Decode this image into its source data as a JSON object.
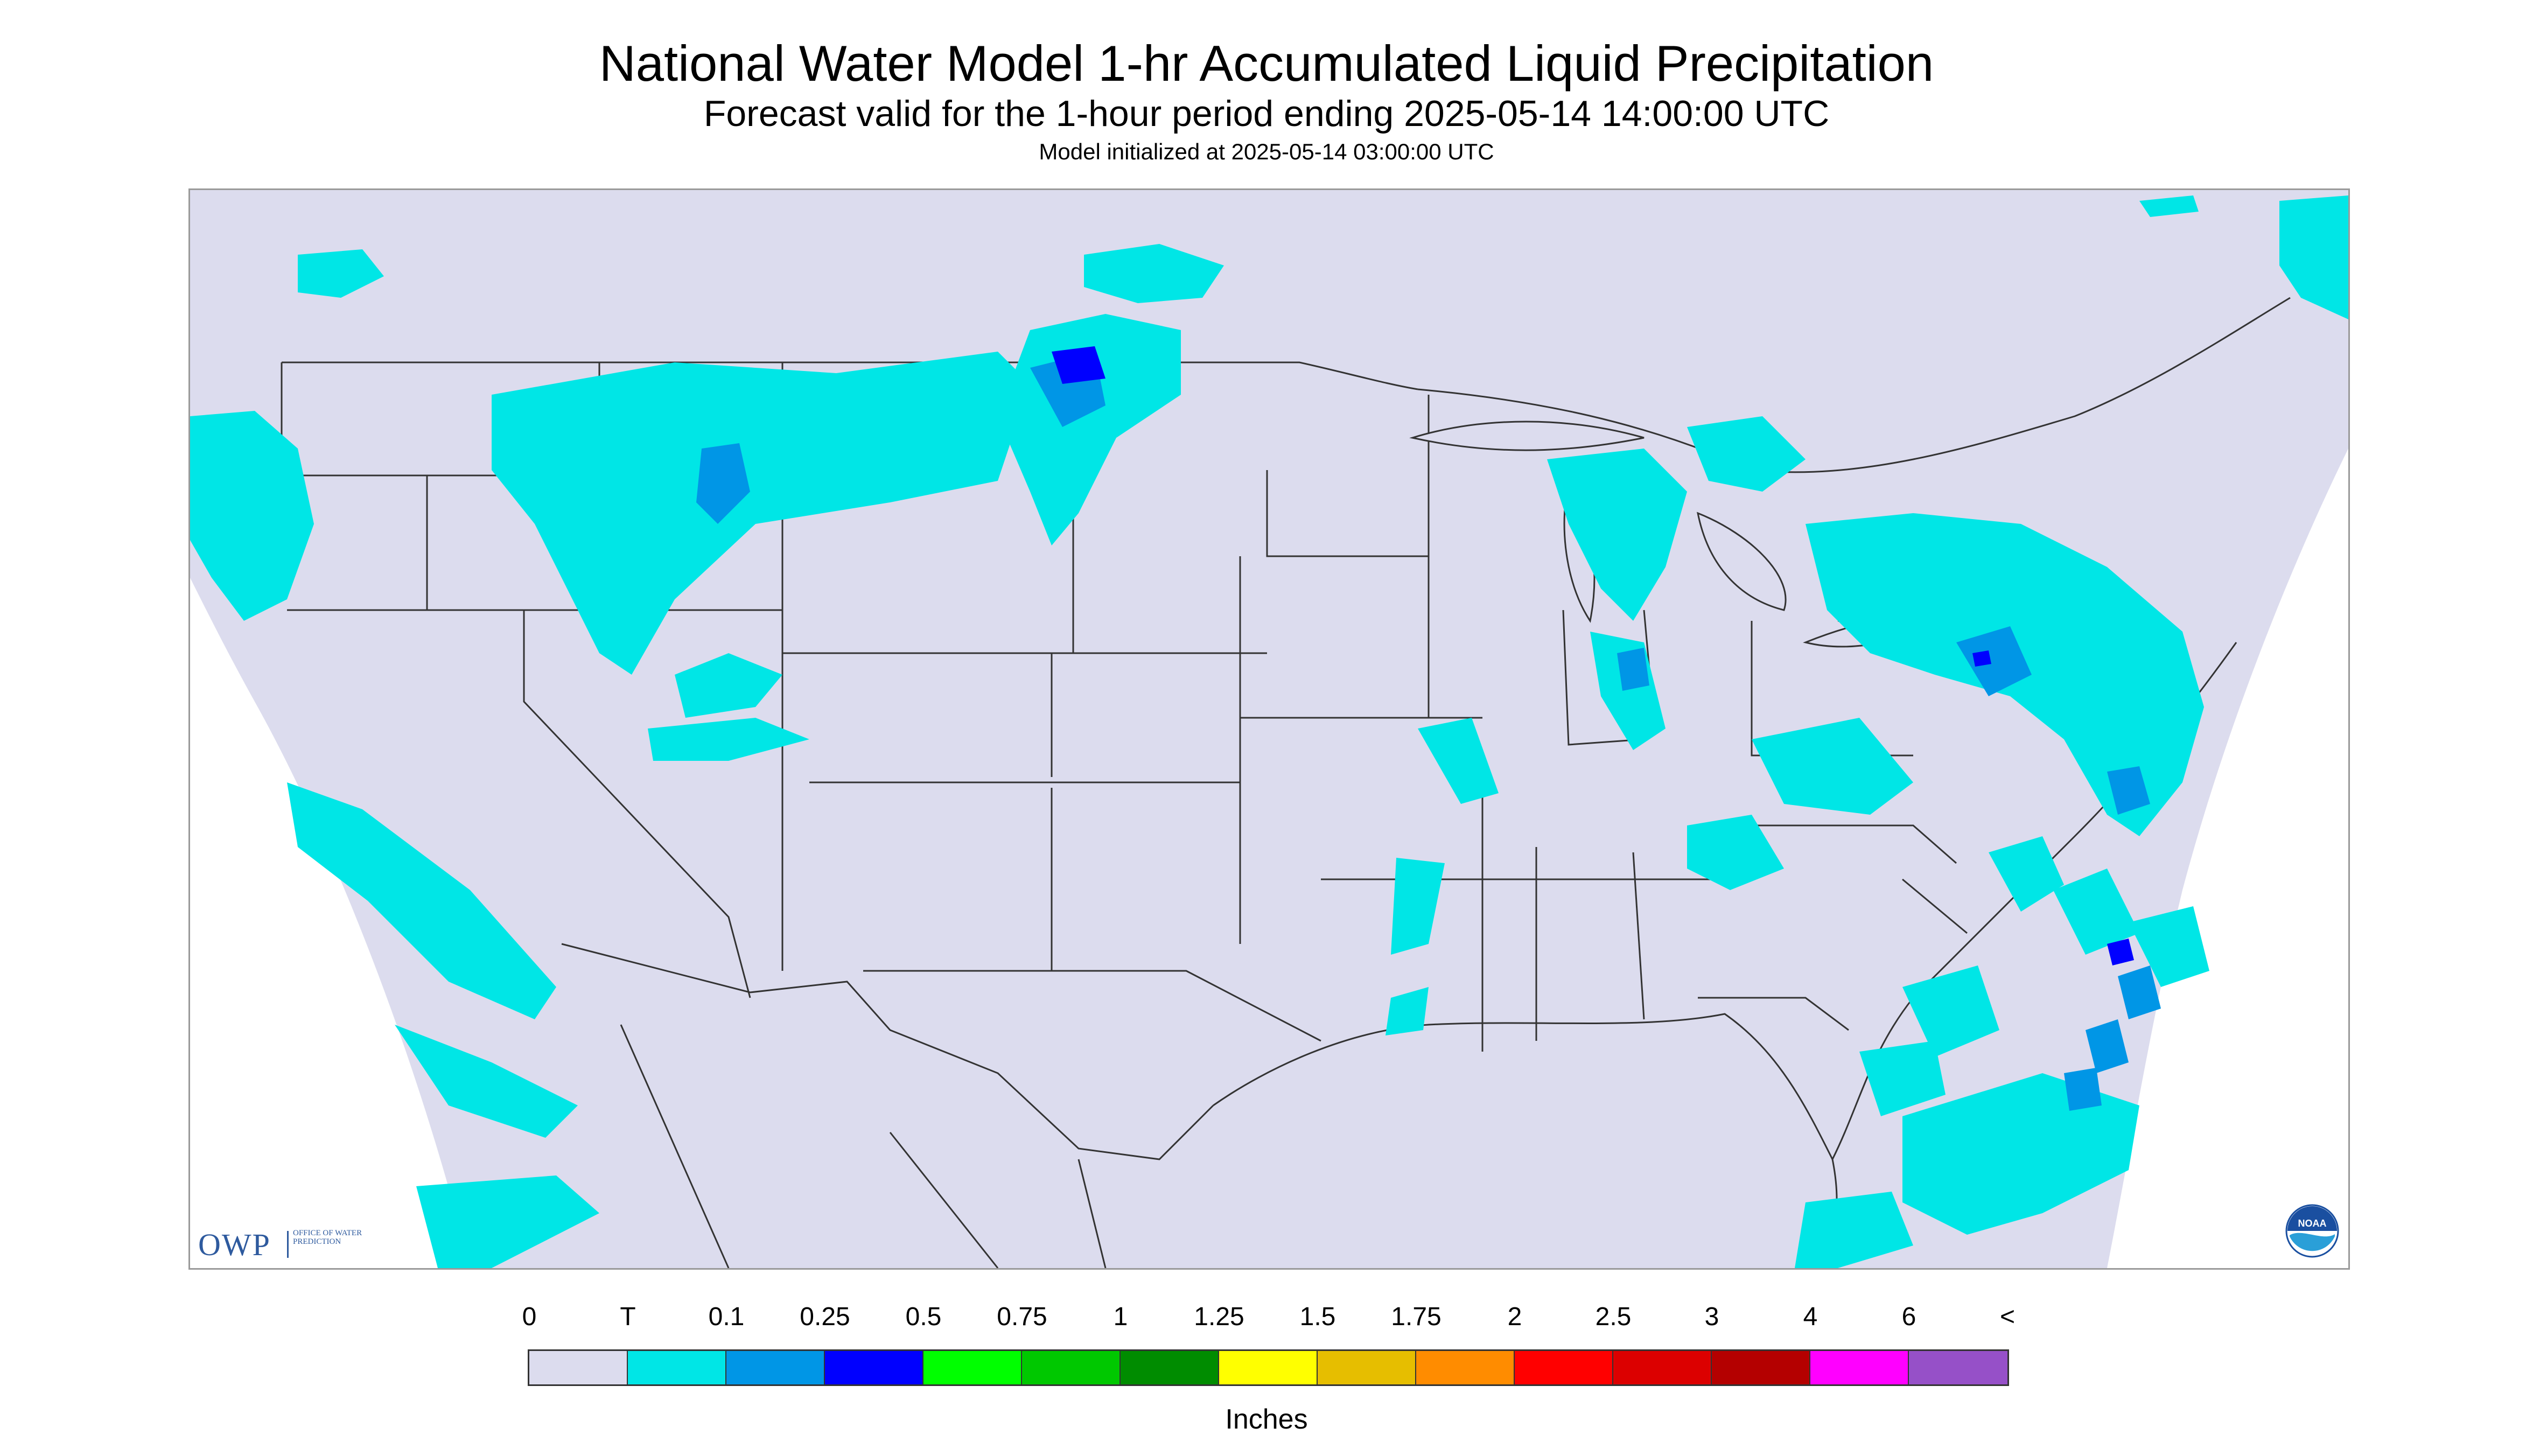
{
  "title": "National Water Model 1-hr Accumulated Liquid Precipitation",
  "subtitle": "Forecast valid for the 1-hour period ending 2025-05-14 14:00:00 UTC",
  "init_line": "Model initialized at 2025-05-14 03:00:00 UTC",
  "logos": {
    "owp_main": "OWP",
    "owp_sub": "OFFICE OF WATER PREDICTION",
    "noaa": "NOAA"
  },
  "legend": {
    "labels": [
      "0",
      "T",
      "0.1",
      "0.25",
      "0.5",
      "0.75",
      "1",
      "1.25",
      "1.5",
      "1.75",
      "2",
      "2.5",
      "3",
      "4",
      "6",
      "<"
    ],
    "colors": [
      "#dcdcee",
      "#00e6e6",
      "#0096e6",
      "#0000ff",
      "#00ff00",
      "#00c800",
      "#008c00",
      "#ffff00",
      "#e6be00",
      "#ff8c00",
      "#ff0000",
      "#dc0000",
      "#b40000",
      "#ff00ff",
      "#9650c8"
    ],
    "units": "Inches"
  },
  "map_colors": {
    "domain_fill": "#dcdcee",
    "outside_fill": "#ffffff",
    "trace": "#00e6e6",
    "light": "#0096e6",
    "moderate": "#0000ff",
    "heavy": "#00c800",
    "borders": "#333333"
  },
  "map_region": "Contiguous United States (CONUS) with parts of Canada and Mexico"
}
